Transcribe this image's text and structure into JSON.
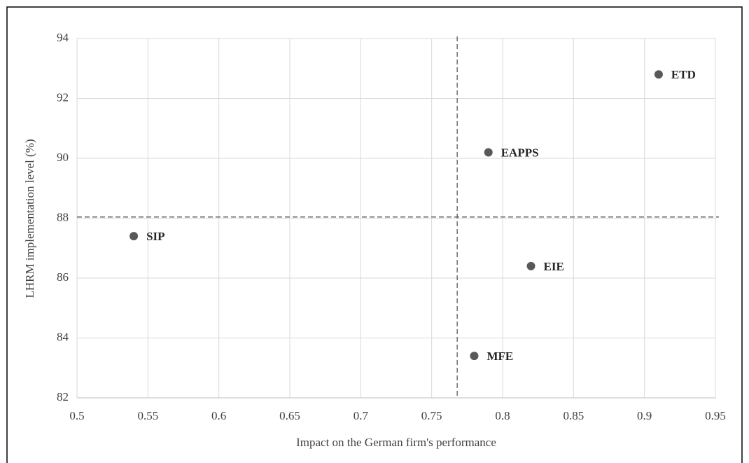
{
  "chart_data": {
    "type": "scatter",
    "xlabel": "Impact on the German firm's performance",
    "ylabel": "LHRM implementation level (%)",
    "labels": [
      "SIP",
      "ETD",
      "EAPPS",
      "EIE",
      "MFE"
    ],
    "x": [
      0.54,
      0.91,
      0.79,
      0.82,
      0.78
    ],
    "values": [
      87.4,
      92.8,
      90.2,
      86.4,
      83.4
    ],
    "color": "#595959",
    "xlim": [
      0.5,
      0.95
    ],
    "xticks": [
      0.5,
      0.55,
      0.6,
      0.65,
      0.7,
      0.75,
      0.8,
      0.85,
      0.9,
      0.95
    ],
    "ylim": [
      82,
      94
    ],
    "yticks": [
      82,
      84,
      86,
      88,
      90,
      92,
      94
    ],
    "grid": true,
    "x_reference_line": 0.768,
    "y_reference_line": 88.04
  }
}
